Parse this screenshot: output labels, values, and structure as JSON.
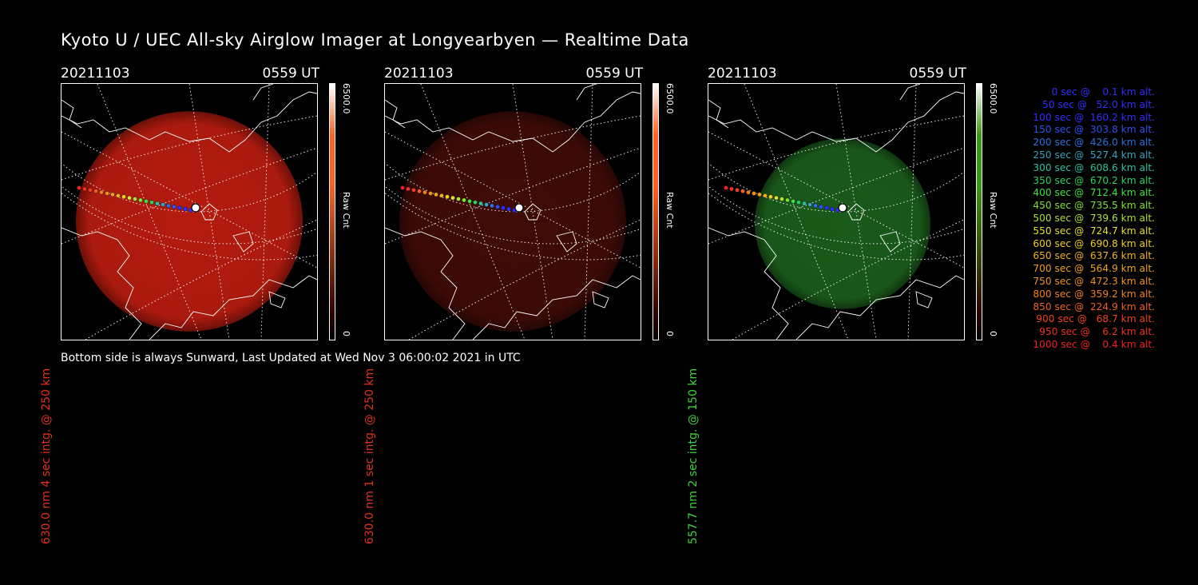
{
  "title": "Kyoto U / UEC All-sky Airglow Imager at Longyearbyen — Realtime Data",
  "footer": "Bottom side is always Sunward, Last Updated at Wed Nov  3 06:00:02 2021 in UTC",
  "panels": [
    {
      "date": "20211103",
      "time": "0559 UT",
      "side_label": "630.0 nm 4 sec intg. @ 250 km",
      "label_color": "#e03020",
      "cbar_max": "6500.0",
      "cbar_label": "Raw Cnt",
      "cbar_min": "0",
      "cbar_color": "#ff6020",
      "glow_color": "#c81e10",
      "glow_level": 0.9
    },
    {
      "date": "20211103",
      "time": "0559 UT",
      "side_label": "630.0 nm 1 sec intg. @ 250 km",
      "label_color": "#e03020",
      "cbar_max": "6500.0",
      "cbar_label": "Raw Cnt",
      "cbar_min": "0",
      "cbar_color": "#ff6020",
      "glow_color": "#4a0d08",
      "glow_level": 0.85
    },
    {
      "date": "20211103",
      "time": "0559 UT",
      "side_label": "557.7 nm 2 sec intg. @ 150 km",
      "label_color": "#40d040",
      "cbar_max": "6500.0",
      "cbar_label": "Raw Cnt",
      "cbar_min": "0",
      "cbar_color": "#3a9a10",
      "glow_color": "#1f6a1f",
      "glow_level": 0.85
    }
  ],
  "legend": [
    {
      "text": "   0 sec @    0.1 km alt.",
      "color": "#3030ff"
    },
    {
      "text": "  50 sec @   52.0 km alt.",
      "color": "#3030ff"
    },
    {
      "text": " 100 sec @  160.2 km alt.",
      "color": "#3030ff"
    },
    {
      "text": " 150 sec @  303.8 km alt.",
      "color": "#3050f0"
    },
    {
      "text": " 200 sec @  426.0 km alt.",
      "color": "#3070e0"
    },
    {
      "text": " 250 sec @  527.4 km alt.",
      "color": "#3aa0c0"
    },
    {
      "text": " 300 sec @  608.6 km alt.",
      "color": "#30c0a0"
    },
    {
      "text": " 350 sec @  670.2 km alt.",
      "color": "#30d060"
    },
    {
      "text": " 400 sec @  712.4 km alt.",
      "color": "#40e040"
    },
    {
      "text": " 450 sec @  735.5 km alt.",
      "color": "#80e030"
    },
    {
      "text": " 500 sec @  739.6 km alt.",
      "color": "#b0e030"
    },
    {
      "text": " 550 sec @  724.7 km alt.",
      "color": "#e0e030"
    },
    {
      "text": " 600 sec @  690.8 km alt.",
      "color": "#f0d020"
    },
    {
      "text": " 650 sec @  637.6 km alt.",
      "color": "#f0b020"
    },
    {
      "text": " 700 sec @  564.9 km alt.",
      "color": "#f0a020"
    },
    {
      "text": " 750 sec @  472.3 km alt.",
      "color": "#f09020"
    },
    {
      "text": " 800 sec @  359.2 km alt.",
      "color": "#f08020"
    },
    {
      "text": " 850 sec @  224.9 km alt.",
      "color": "#f06020"
    },
    {
      "text": " 900 sec @   68.7 km alt.",
      "color": "#f04020"
    },
    {
      "text": " 950 sec @    6.2 km alt.",
      "color": "#f03020"
    },
    {
      "text": "1000 sec @    0.4 km alt.",
      "color": "#f02020"
    }
  ]
}
